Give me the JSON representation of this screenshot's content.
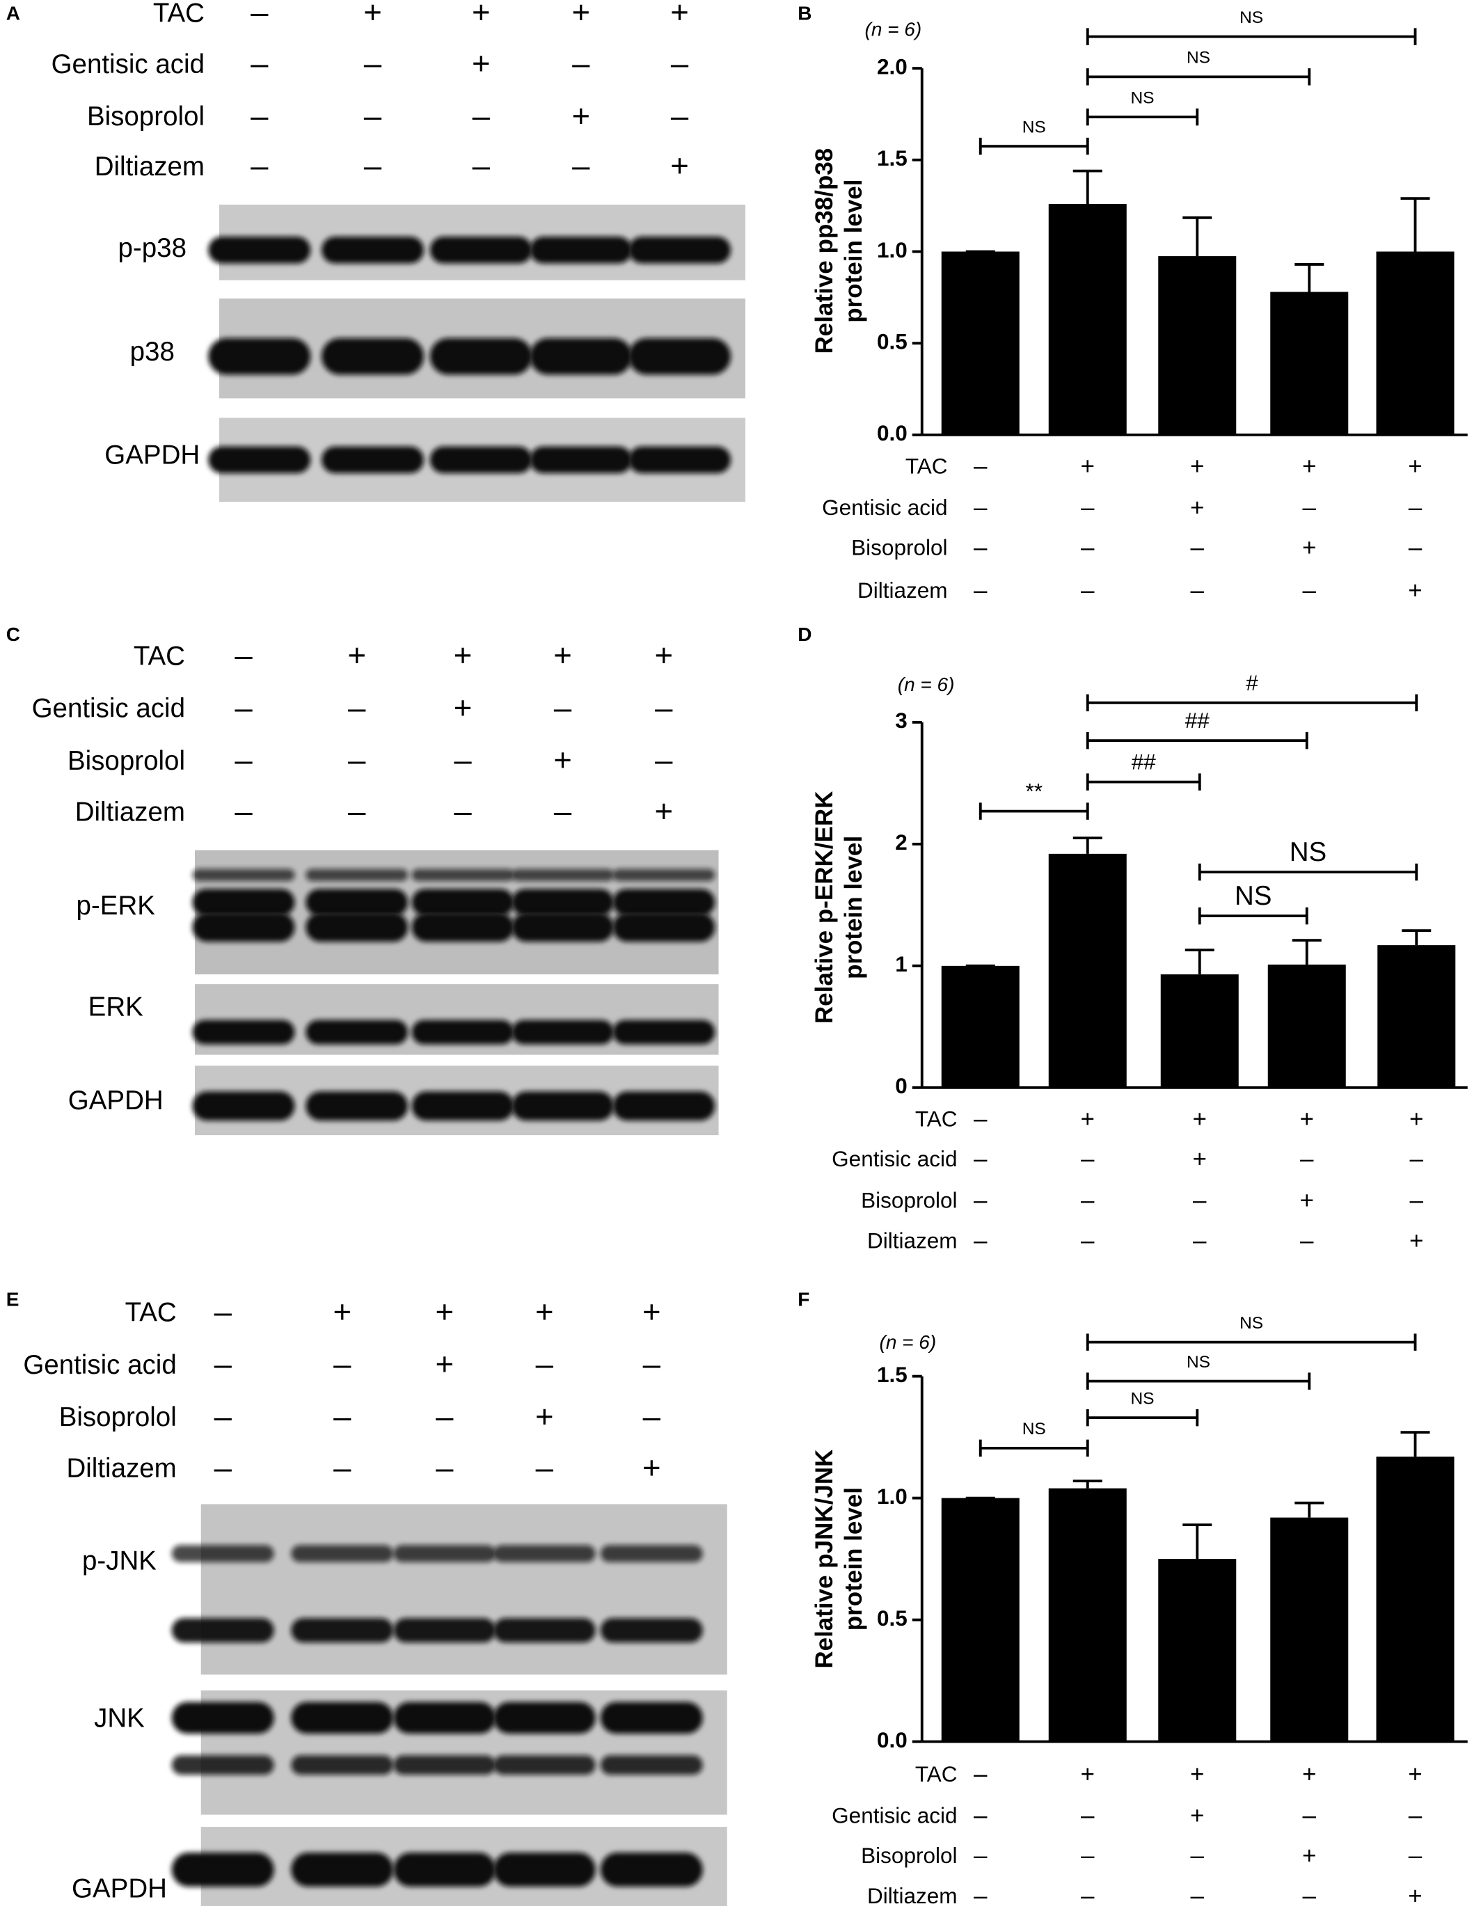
{
  "blots": [
    {
      "letter": "A",
      "treatments": [
        {
          "name": "TAC",
          "signs": [
            "–",
            "+",
            "+",
            "+",
            "+"
          ]
        },
        {
          "name": "Gentisic acid",
          "signs": [
            "–",
            "–",
            "+",
            "–",
            "–"
          ]
        },
        {
          "name": "Bisoprolol",
          "signs": [
            "–",
            "–",
            "–",
            "+",
            "–"
          ]
        },
        {
          "name": "Diltiazem",
          "signs": [
            "–",
            "–",
            "–",
            "–",
            "+"
          ]
        }
      ],
      "bands": [
        "p-p38",
        "p38",
        "GAPDH"
      ]
    },
    {
      "letter": "C",
      "treatments": [
        {
          "name": "TAC",
          "signs": [
            "–",
            "+",
            "+",
            "+",
            "+"
          ]
        },
        {
          "name": "Gentisic acid",
          "signs": [
            "–",
            "–",
            "+",
            "–",
            "–"
          ]
        },
        {
          "name": "Bisoprolol",
          "signs": [
            "–",
            "–",
            "–",
            "+",
            "–"
          ]
        },
        {
          "name": "Diltiazem",
          "signs": [
            "–",
            "–",
            "–",
            "–",
            "+"
          ]
        }
      ],
      "bands": [
        "p-ERK",
        "ERK",
        "GAPDH"
      ]
    },
    {
      "letter": "E",
      "treatments": [
        {
          "name": "TAC",
          "signs": [
            "–",
            "+",
            "+",
            "+",
            "+"
          ]
        },
        {
          "name": "Gentisic acid",
          "signs": [
            "–",
            "–",
            "+",
            "–",
            "–"
          ]
        },
        {
          "name": "Bisoprolol",
          "signs": [
            "–",
            "–",
            "–",
            "+",
            "–"
          ]
        },
        {
          "name": "Diltiazem",
          "signs": [
            "–",
            "–",
            "–",
            "–",
            "+"
          ]
        }
      ],
      "bands": [
        "p-JNK",
        "JNK",
        "GAPDH"
      ]
    }
  ],
  "chart_data": [
    {
      "type": "bar",
      "letter": "B",
      "annotation": "(n = 6)",
      "ylabel": [
        "Relative pp38/p38",
        "protein level"
      ],
      "ylim": [
        0,
        2
      ],
      "yticks": [
        {
          "value": 0,
          "label": "0.0"
        },
        {
          "value": 0.5,
          "label": "0.5"
        },
        {
          "value": 1,
          "label": "1.0"
        },
        {
          "value": 1.5,
          "label": "1.5"
        },
        {
          "value": 2,
          "label": "2.0"
        }
      ],
      "values": [
        1.0,
        1.26,
        0.975,
        0.78,
        1.0
      ],
      "errors": [
        0,
        0.18,
        0.21,
        0.15,
        0.29
      ],
      "color": "#000000",
      "comparisons": [
        {
          "groups": [
            0,
            1
          ],
          "label": "NS"
        },
        {
          "groups": [
            1,
            2
          ],
          "label": "NS"
        },
        {
          "groups": [
            1,
            3
          ],
          "label": "NS"
        },
        {
          "groups": [
            1,
            4
          ],
          "label": "NS"
        }
      ],
      "treatments": [
        {
          "name": "TAC",
          "signs": [
            "–",
            "+",
            "+",
            "+",
            "+"
          ]
        },
        {
          "name": "Gentisic acid",
          "signs": [
            "–",
            "–",
            "+",
            "–",
            "–"
          ]
        },
        {
          "name": "Bisoprolol",
          "signs": [
            "–",
            "–",
            "–",
            "+",
            "–"
          ]
        },
        {
          "name": "Diltiazem",
          "signs": [
            "–",
            "–",
            "–",
            "–",
            "+"
          ]
        }
      ]
    },
    {
      "type": "bar",
      "letter": "D",
      "annotation": "(n = 6)",
      "ylabel": [
        "Relative p-ERK/ERK",
        "protein level"
      ],
      "ylim": [
        0,
        3
      ],
      "yticks": [
        0,
        1,
        2,
        3
      ],
      "values": [
        1.0,
        1.92,
        0.93,
        1.01,
        1.17
      ],
      "errors": [
        0,
        0.13,
        0.2,
        0.2,
        0.12
      ],
      "color": "#000000",
      "comparisons": [
        {
          "groups": [
            0,
            1
          ],
          "label": "**"
        },
        {
          "groups": [
            1,
            2
          ],
          "label": "##"
        },
        {
          "groups": [
            1,
            3
          ],
          "label": "##"
        },
        {
          "groups": [
            1,
            4
          ],
          "label": "#"
        },
        {
          "groups": [
            2,
            3
          ],
          "label": "NS"
        },
        {
          "groups": [
            2,
            4
          ],
          "label": "NS"
        }
      ],
      "treatments": [
        {
          "name": "TAC",
          "signs": [
            "–",
            "+",
            "+",
            "+",
            "+"
          ]
        },
        {
          "name": "Gentisic acid",
          "signs": [
            "–",
            "–",
            "+",
            "–",
            "–"
          ]
        },
        {
          "name": "Bisoprolol",
          "signs": [
            "–",
            "–",
            "–",
            "+",
            "–"
          ]
        },
        {
          "name": "Diltiazem",
          "signs": [
            "–",
            "–",
            "–",
            "–",
            "+"
          ]
        }
      ]
    },
    {
      "type": "bar",
      "letter": "F",
      "annotation": "(n = 6)",
      "ylabel": [
        "Relative pJNK/JNK",
        "protein level"
      ],
      "ylim": [
        0,
        1.5
      ],
      "yticks": [
        {
          "value": 0,
          "label": "0.0"
        },
        {
          "value": 0.5,
          "label": "0.5"
        },
        {
          "value": 1,
          "label": "1.0"
        },
        {
          "value": 1.5,
          "label": "1.5"
        }
      ],
      "values": [
        1.0,
        1.04,
        0.75,
        0.92,
        1.17
      ],
      "errors": [
        0,
        0.03,
        0.14,
        0.06,
        0.1
      ],
      "color": "#000000",
      "comparisons": [
        {
          "groups": [
            0,
            1
          ],
          "label": "NS"
        },
        {
          "groups": [
            1,
            2
          ],
          "label": "NS"
        },
        {
          "groups": [
            1,
            3
          ],
          "label": "NS"
        },
        {
          "groups": [
            1,
            4
          ],
          "label": "NS"
        }
      ],
      "treatments": [
        {
          "name": "TAC",
          "signs": [
            "–",
            "+",
            "+",
            "+",
            "+"
          ]
        },
        {
          "name": "Gentisic acid",
          "signs": [
            "–",
            "–",
            "+",
            "–",
            "–"
          ]
        },
        {
          "name": "Bisoprolol",
          "signs": [
            "–",
            "–",
            "–",
            "+",
            "–"
          ]
        },
        {
          "name": "Diltiazem",
          "signs": [
            "–",
            "–",
            "–",
            "–",
            "+"
          ]
        }
      ]
    }
  ]
}
